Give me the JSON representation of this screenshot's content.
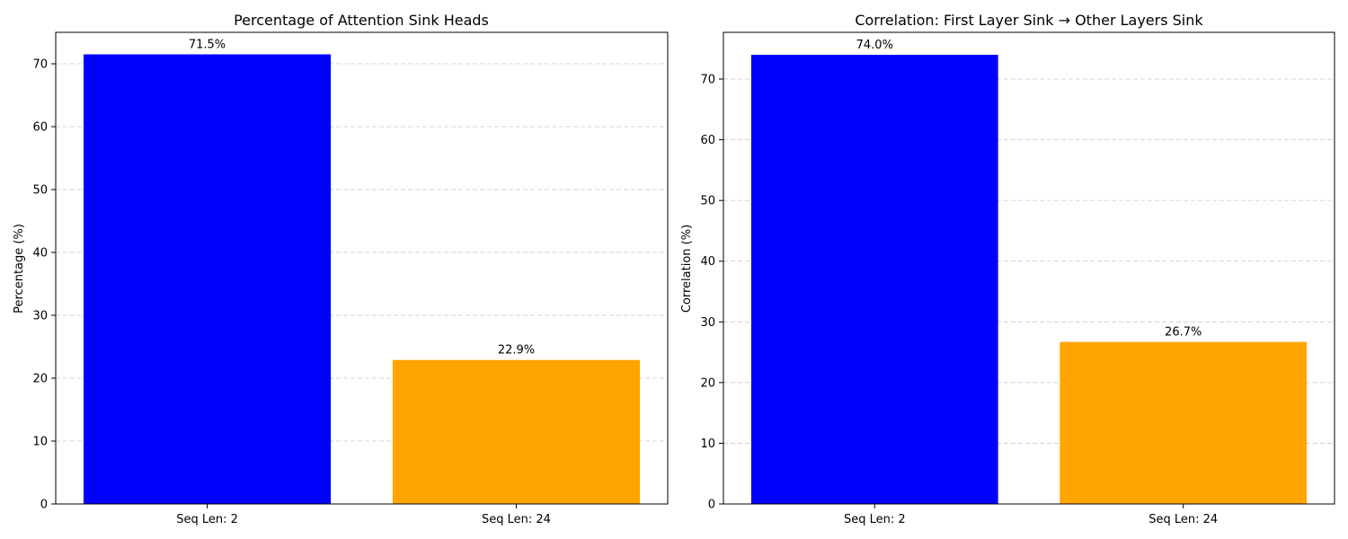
{
  "chart_data": [
    {
      "type": "bar",
      "title": "Percentage of Attention Sink Heads",
      "xlabel": "",
      "ylabel": "Percentage (%)",
      "categories": [
        "Seq Len: 2",
        "Seq Len: 24"
      ],
      "values": [
        71.5,
        22.9
      ],
      "value_labels": [
        "71.5%",
        "22.9%"
      ],
      "bar_colors": [
        "#0000ff",
        "#ffa500"
      ],
      "ylim": [
        0,
        75
      ],
      "yticks": [
        0,
        10,
        20,
        30,
        40,
        50,
        60,
        70
      ],
      "ytick_labels": [
        "0",
        "10",
        "20",
        "30",
        "40",
        "50",
        "60",
        "70"
      ],
      "grid": "y-dashed",
      "legend": "none"
    },
    {
      "type": "bar",
      "title": "Correlation: First Layer Sink → Other Layers Sink",
      "xlabel": "",
      "ylabel": "Correlation (%)",
      "categories": [
        "Seq Len: 2",
        "Seq Len: 24"
      ],
      "values": [
        74.0,
        26.7
      ],
      "value_labels": [
        "74.0%",
        "26.7%"
      ],
      "bar_colors": [
        "#0000ff",
        "#ffa500"
      ],
      "ylim": [
        0,
        77.7
      ],
      "yticks": [
        0,
        10,
        20,
        30,
        40,
        50,
        60,
        70
      ],
      "ytick_labels": [
        "0",
        "10",
        "20",
        "30",
        "40",
        "50",
        "60",
        "70"
      ],
      "grid": "y-dashed",
      "legend": "none"
    }
  ]
}
